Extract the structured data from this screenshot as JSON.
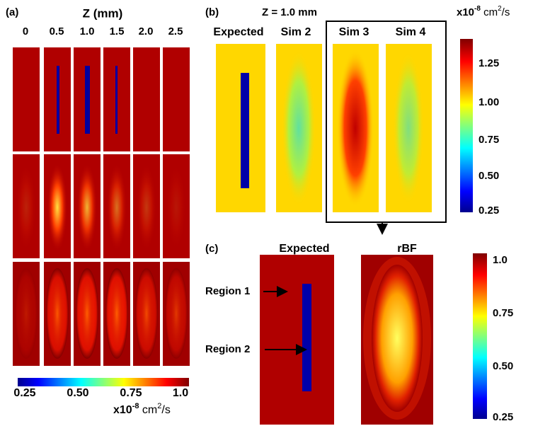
{
  "panel_a": {
    "label": "(a)",
    "axis_title": "Z  (mm)",
    "z_labels": [
      "0",
      "0.5",
      "1.0",
      "1.5",
      "2.0",
      "2.5"
    ],
    "colorbar": {
      "ticks": [
        "0.25",
        "0.50",
        "0.75",
        "1.0"
      ],
      "unit": [
        "x10",
        "-8",
        " cm",
        "2",
        "/s"
      ]
    }
  },
  "panel_b": {
    "label": "(b)",
    "title": "Z =  1.0 mm",
    "columns": [
      "Expected",
      "Sim 2",
      "Sim 3",
      "Sim 4"
    ],
    "colorbar": {
      "ticks": [
        "1.25",
        "1.00",
        "0.75",
        "0.50",
        "0.25"
      ],
      "unit": [
        "x10",
        "-8",
        " cm",
        "2",
        "/s"
      ]
    }
  },
  "panel_c": {
    "label": "(c)",
    "columns": [
      "Expected",
      "rBF"
    ],
    "annotations": [
      "Region 1",
      "Region 2"
    ],
    "colorbar": {
      "ticks": [
        "1.0",
        "0.75",
        "0.50",
        "0.25"
      ]
    }
  }
}
